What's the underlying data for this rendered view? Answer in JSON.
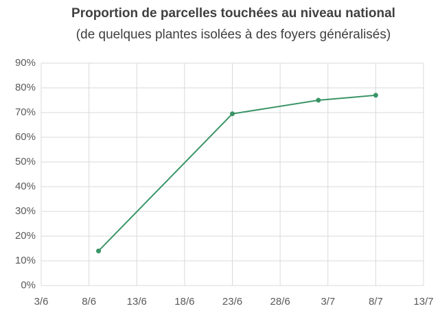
{
  "chart_data": {
    "type": "line",
    "title": "Proportion de parcelles touchées au niveau national",
    "subtitle": "(de quelques plantes isolées à des foyers généralisés)",
    "x": [
      "9/6",
      "23/6",
      "2/7",
      "8/7"
    ],
    "series": [
      {
        "name": "Proportion",
        "color": "#3a9466",
        "values": [
          14,
          69.5,
          75,
          77
        ]
      }
    ],
    "xlim": [
      "3/6",
      "13/7"
    ],
    "xticks": [
      "3/6",
      "8/6",
      "13/6",
      "18/6",
      "23/6",
      "28/6",
      "3/7",
      "8/7",
      "13/7"
    ],
    "ylim": [
      0,
      90
    ],
    "yticks": [
      {
        "value": 0,
        "label": "0%"
      },
      {
        "value": 10,
        "label": "10%"
      },
      {
        "value": 20,
        "label": "20%"
      },
      {
        "value": 30,
        "label": "30%"
      },
      {
        "value": 40,
        "label": "40%"
      },
      {
        "value": 50,
        "label": "50%"
      },
      {
        "value": 60,
        "label": "60%"
      },
      {
        "value": 70,
        "label": "70%"
      },
      {
        "value": 80,
        "label": "80%"
      },
      {
        "value": 90,
        "label": "90%"
      }
    ],
    "grid": true
  }
}
